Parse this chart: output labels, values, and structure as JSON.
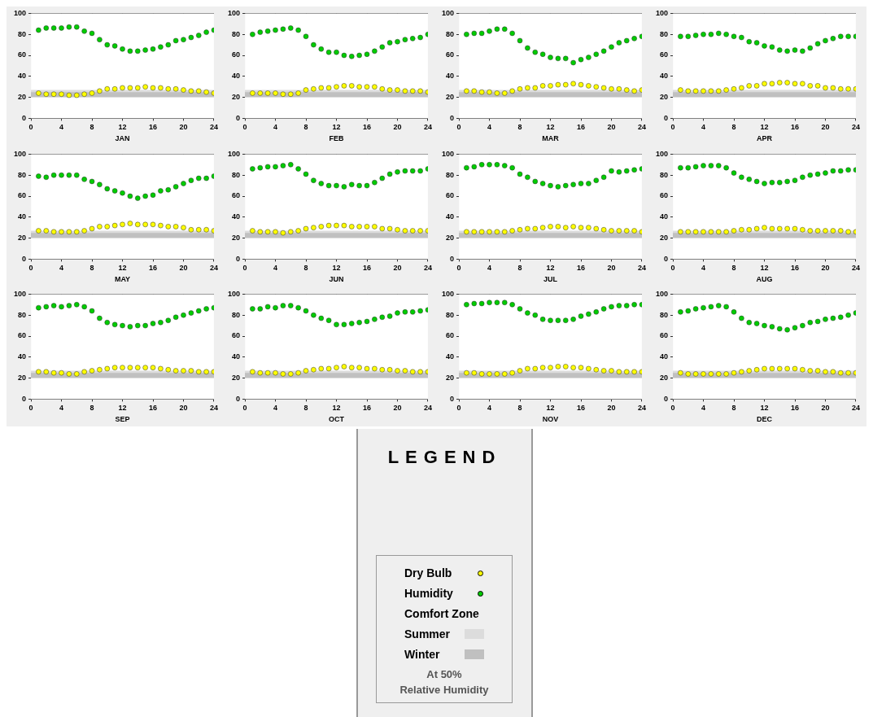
{
  "chart_data": [
    {
      "type": "scatter",
      "xlabel": "JAN",
      "x": [
        1,
        2,
        3,
        4,
        5,
        6,
        7,
        8,
        9,
        10,
        11,
        12,
        13,
        14,
        15,
        16,
        17,
        18,
        19,
        20,
        21,
        22,
        23,
        24
      ],
      "xlim": [
        0,
        24
      ],
      "xticks": [
        0,
        4,
        8,
        12,
        16,
        20,
        24
      ],
      "ylim": [
        0,
        100
      ],
      "yticks": [
        0,
        20,
        40,
        60,
        80,
        100
      ],
      "grid": true,
      "marker": "circle",
      "bands": [
        {
          "axis": "y",
          "from": 23,
          "to": 27,
          "color": "#dcdcdc"
        },
        {
          "axis": "y",
          "from": 20,
          "to": 25,
          "color": "#c0c0c0"
        }
      ],
      "series": [
        {
          "color": "#ffff00",
          "values": [
            24,
            23,
            23,
            23,
            22,
            22,
            23,
            24,
            26,
            28,
            28,
            29,
            29,
            29,
            30,
            29,
            29,
            28,
            28,
            27,
            26,
            26,
            25,
            24
          ]
        },
        {
          "color": "#00cc00",
          "values": [
            84,
            86,
            86,
            86,
            87,
            87,
            83,
            81,
            75,
            70,
            69,
            66,
            64,
            64,
            65,
            66,
            68,
            70,
            74,
            75,
            77,
            79,
            82,
            84
          ]
        }
      ]
    },
    {
      "type": "scatter",
      "xlabel": "FEB",
      "x": [
        1,
        2,
        3,
        4,
        5,
        6,
        7,
        8,
        9,
        10,
        11,
        12,
        13,
        14,
        15,
        16,
        17,
        18,
        19,
        20,
        21,
        22,
        23,
        24
      ],
      "xlim": [
        0,
        24
      ],
      "xticks": [
        0,
        4,
        8,
        12,
        16,
        20,
        24
      ],
      "ylim": [
        0,
        100
      ],
      "yticks": [
        0,
        20,
        40,
        60,
        80,
        100
      ],
      "grid": true,
      "marker": "circle",
      "bands": [
        {
          "axis": "y",
          "from": 23,
          "to": 27,
          "color": "#dcdcdc"
        },
        {
          "axis": "y",
          "from": 20,
          "to": 25,
          "color": "#c0c0c0"
        }
      ],
      "series": [
        {
          "color": "#ffff00",
          "values": [
            24,
            24,
            24,
            24,
            23,
            23,
            24,
            27,
            28,
            29,
            29,
            30,
            31,
            31,
            30,
            30,
            30,
            28,
            27,
            27,
            26,
            26,
            26,
            25
          ]
        },
        {
          "color": "#00cc00",
          "values": [
            80,
            82,
            83,
            84,
            85,
            86,
            84,
            78,
            70,
            66,
            63,
            63,
            60,
            59,
            60,
            61,
            64,
            68,
            72,
            73,
            75,
            76,
            77,
            80
          ]
        }
      ]
    },
    {
      "type": "scatter",
      "xlabel": "MAR",
      "x": [
        1,
        2,
        3,
        4,
        5,
        6,
        7,
        8,
        9,
        10,
        11,
        12,
        13,
        14,
        15,
        16,
        17,
        18,
        19,
        20,
        21,
        22,
        23,
        24
      ],
      "xlim": [
        0,
        24
      ],
      "xticks": [
        0,
        4,
        8,
        12,
        16,
        20,
        24
      ],
      "ylim": [
        0,
        100
      ],
      "yticks": [
        0,
        20,
        40,
        60,
        80,
        100
      ],
      "grid": true,
      "marker": "circle",
      "bands": [
        {
          "axis": "y",
          "from": 23,
          "to": 27,
          "color": "#dcdcdc"
        },
        {
          "axis": "y",
          "from": 20,
          "to": 25,
          "color": "#c0c0c0"
        }
      ],
      "series": [
        {
          "color": "#ffff00",
          "values": [
            26,
            26,
            25,
            25,
            24,
            24,
            26,
            28,
            29,
            29,
            31,
            31,
            32,
            32,
            33,
            32,
            31,
            30,
            29,
            28,
            28,
            27,
            26,
            27
          ]
        },
        {
          "color": "#00cc00",
          "values": [
            80,
            81,
            81,
            83,
            85,
            85,
            81,
            74,
            67,
            63,
            61,
            58,
            57,
            57,
            53,
            56,
            58,
            61,
            64,
            68,
            72,
            74,
            76,
            78
          ]
        }
      ]
    },
    {
      "type": "scatter",
      "xlabel": "APR",
      "x": [
        1,
        2,
        3,
        4,
        5,
        6,
        7,
        8,
        9,
        10,
        11,
        12,
        13,
        14,
        15,
        16,
        17,
        18,
        19,
        20,
        21,
        22,
        23,
        24
      ],
      "xlim": [
        0,
        24
      ],
      "xticks": [
        0,
        4,
        8,
        12,
        16,
        20,
        24
      ],
      "ylim": [
        0,
        100
      ],
      "yticks": [
        0,
        20,
        40,
        60,
        80,
        100
      ],
      "grid": true,
      "marker": "circle",
      "bands": [
        {
          "axis": "y",
          "from": 23,
          "to": 27,
          "color": "#dcdcdc"
        },
        {
          "axis": "y",
          "from": 20,
          "to": 25,
          "color": "#c0c0c0"
        }
      ],
      "series": [
        {
          "color": "#ffff00",
          "values": [
            27,
            26,
            26,
            26,
            26,
            26,
            27,
            28,
            29,
            31,
            31,
            33,
            33,
            34,
            34,
            33,
            33,
            31,
            31,
            29,
            29,
            28,
            28,
            28
          ]
        },
        {
          "color": "#00cc00",
          "values": [
            78,
            78,
            79,
            80,
            80,
            81,
            80,
            78,
            77,
            73,
            72,
            69,
            68,
            65,
            64,
            65,
            64,
            67,
            71,
            74,
            76,
            78,
            78,
            78
          ]
        }
      ]
    },
    {
      "type": "scatter",
      "xlabel": "MAY",
      "x": [
        1,
        2,
        3,
        4,
        5,
        6,
        7,
        8,
        9,
        10,
        11,
        12,
        13,
        14,
        15,
        16,
        17,
        18,
        19,
        20,
        21,
        22,
        23,
        24
      ],
      "xlim": [
        0,
        24
      ],
      "xticks": [
        0,
        4,
        8,
        12,
        16,
        20,
        24
      ],
      "ylim": [
        0,
        100
      ],
      "yticks": [
        0,
        20,
        40,
        60,
        80,
        100
      ],
      "grid": true,
      "marker": "circle",
      "bands": [
        {
          "axis": "y",
          "from": 23,
          "to": 27,
          "color": "#dcdcdc"
        },
        {
          "axis": "y",
          "from": 20,
          "to": 25,
          "color": "#c0c0c0"
        }
      ],
      "series": [
        {
          "color": "#ffff00",
          "values": [
            27,
            27,
            26,
            26,
            26,
            26,
            27,
            29,
            31,
            31,
            32,
            33,
            34,
            33,
            33,
            33,
            32,
            31,
            31,
            30,
            28,
            28,
            28,
            27
          ]
        },
        {
          "color": "#00cc00",
          "values": [
            79,
            78,
            80,
            80,
            80,
            80,
            76,
            74,
            71,
            67,
            65,
            63,
            60,
            58,
            60,
            61,
            65,
            66,
            69,
            72,
            75,
            77,
            77,
            79
          ]
        }
      ]
    },
    {
      "type": "scatter",
      "xlabel": "JUN",
      "x": [
        1,
        2,
        3,
        4,
        5,
        6,
        7,
        8,
        9,
        10,
        11,
        12,
        13,
        14,
        15,
        16,
        17,
        18,
        19,
        20,
        21,
        22,
        23,
        24
      ],
      "xlim": [
        0,
        24
      ],
      "xticks": [
        0,
        4,
        8,
        12,
        16,
        20,
        24
      ],
      "ylim": [
        0,
        100
      ],
      "yticks": [
        0,
        20,
        40,
        60,
        80,
        100
      ],
      "grid": true,
      "marker": "circle",
      "bands": [
        {
          "axis": "y",
          "from": 23,
          "to": 27,
          "color": "#dcdcdc"
        },
        {
          "axis": "y",
          "from": 20,
          "to": 25,
          "color": "#c0c0c0"
        }
      ],
      "series": [
        {
          "color": "#ffff00",
          "values": [
            27,
            26,
            26,
            26,
            25,
            26,
            27,
            29,
            30,
            31,
            32,
            32,
            32,
            31,
            31,
            31,
            31,
            29,
            29,
            28,
            27,
            27,
            27,
            27
          ]
        },
        {
          "color": "#00cc00",
          "values": [
            86,
            87,
            88,
            88,
            89,
            90,
            86,
            81,
            75,
            72,
            70,
            70,
            69,
            71,
            70,
            70,
            73,
            77,
            81,
            83,
            84,
            84,
            84,
            86
          ]
        }
      ]
    },
    {
      "type": "scatter",
      "xlabel": "JUL",
      "x": [
        1,
        2,
        3,
        4,
        5,
        6,
        7,
        8,
        9,
        10,
        11,
        12,
        13,
        14,
        15,
        16,
        17,
        18,
        19,
        20,
        21,
        22,
        23,
        24
      ],
      "xlim": [
        0,
        24
      ],
      "xticks": [
        0,
        4,
        8,
        12,
        16,
        20,
        24
      ],
      "ylim": [
        0,
        100
      ],
      "yticks": [
        0,
        20,
        40,
        60,
        80,
        100
      ],
      "grid": true,
      "marker": "circle",
      "bands": [
        {
          "axis": "y",
          "from": 23,
          "to": 27,
          "color": "#dcdcdc"
        },
        {
          "axis": "y",
          "from": 20,
          "to": 25,
          "color": "#c0c0c0"
        }
      ],
      "series": [
        {
          "color": "#ffff00",
          "values": [
            26,
            26,
            26,
            26,
            26,
            26,
            27,
            28,
            29,
            29,
            30,
            31,
            31,
            30,
            31,
            30,
            30,
            29,
            28,
            27,
            27,
            27,
            27,
            26
          ]
        },
        {
          "color": "#00cc00",
          "values": [
            87,
            88,
            90,
            90,
            90,
            89,
            87,
            81,
            78,
            74,
            72,
            70,
            69,
            70,
            71,
            72,
            72,
            75,
            78,
            84,
            83,
            84,
            85,
            86
          ]
        }
      ]
    },
    {
      "type": "scatter",
      "xlabel": "AUG",
      "x": [
        1,
        2,
        3,
        4,
        5,
        6,
        7,
        8,
        9,
        10,
        11,
        12,
        13,
        14,
        15,
        16,
        17,
        18,
        19,
        20,
        21,
        22,
        23,
        24
      ],
      "xlim": [
        0,
        24
      ],
      "xticks": [
        0,
        4,
        8,
        12,
        16,
        20,
        24
      ],
      "ylim": [
        0,
        100
      ],
      "yticks": [
        0,
        20,
        40,
        60,
        80,
        100
      ],
      "grid": true,
      "marker": "circle",
      "bands": [
        {
          "axis": "y",
          "from": 23,
          "to": 27,
          "color": "#dcdcdc"
        },
        {
          "axis": "y",
          "from": 20,
          "to": 25,
          "color": "#c0c0c0"
        }
      ],
      "series": [
        {
          "color": "#ffff00",
          "values": [
            26,
            26,
            26,
            26,
            26,
            26,
            26,
            27,
            28,
            28,
            29,
            30,
            29,
            29,
            29,
            29,
            28,
            27,
            27,
            27,
            27,
            27,
            26,
            26
          ]
        },
        {
          "color": "#00cc00",
          "values": [
            87,
            87,
            88,
            89,
            89,
            89,
            87,
            82,
            78,
            76,
            74,
            72,
            73,
            73,
            74,
            75,
            78,
            80,
            81,
            82,
            84,
            84,
            85,
            85
          ]
        }
      ]
    },
    {
      "type": "scatter",
      "xlabel": "SEP",
      "x": [
        1,
        2,
        3,
        4,
        5,
        6,
        7,
        8,
        9,
        10,
        11,
        12,
        13,
        14,
        15,
        16,
        17,
        18,
        19,
        20,
        21,
        22,
        23,
        24
      ],
      "xlim": [
        0,
        24
      ],
      "xticks": [
        0,
        4,
        8,
        12,
        16,
        20,
        24
      ],
      "ylim": [
        0,
        100
      ],
      "yticks": [
        0,
        20,
        40,
        60,
        80,
        100
      ],
      "grid": true,
      "marker": "circle",
      "bands": [
        {
          "axis": "y",
          "from": 23,
          "to": 27,
          "color": "#dcdcdc"
        },
        {
          "axis": "y",
          "from": 20,
          "to": 25,
          "color": "#c0c0c0"
        }
      ],
      "series": [
        {
          "color": "#ffff00",
          "values": [
            26,
            26,
            25,
            25,
            24,
            24,
            26,
            27,
            28,
            29,
            30,
            30,
            30,
            30,
            30,
            30,
            29,
            28,
            27,
            27,
            27,
            26,
            26,
            26
          ]
        },
        {
          "color": "#00cc00",
          "values": [
            87,
            88,
            89,
            88,
            89,
            90,
            88,
            84,
            77,
            73,
            71,
            70,
            69,
            70,
            70,
            72,
            73,
            75,
            78,
            80,
            82,
            84,
            86,
            87
          ]
        }
      ]
    },
    {
      "type": "scatter",
      "xlabel": "OCT",
      "x": [
        1,
        2,
        3,
        4,
        5,
        6,
        7,
        8,
        9,
        10,
        11,
        12,
        13,
        14,
        15,
        16,
        17,
        18,
        19,
        20,
        21,
        22,
        23,
        24
      ],
      "xlim": [
        0,
        24
      ],
      "xticks": [
        0,
        4,
        8,
        12,
        16,
        20,
        24
      ],
      "ylim": [
        0,
        100
      ],
      "yticks": [
        0,
        20,
        40,
        60,
        80,
        100
      ],
      "grid": true,
      "marker": "circle",
      "bands": [
        {
          "axis": "y",
          "from": 23,
          "to": 27,
          "color": "#dcdcdc"
        },
        {
          "axis": "y",
          "from": 20,
          "to": 25,
          "color": "#c0c0c0"
        }
      ],
      "series": [
        {
          "color": "#ffff00",
          "values": [
            26,
            25,
            25,
            25,
            24,
            24,
            25,
            27,
            28,
            29,
            29,
            30,
            31,
            30,
            30,
            29,
            29,
            28,
            28,
            27,
            27,
            26,
            26,
            26
          ]
        },
        {
          "color": "#00cc00",
          "values": [
            86,
            86,
            88,
            87,
            89,
            89,
            87,
            84,
            80,
            77,
            75,
            71,
            71,
            72,
            73,
            74,
            76,
            78,
            79,
            82,
            83,
            83,
            84,
            85
          ]
        }
      ]
    },
    {
      "type": "scatter",
      "xlabel": "NOV",
      "x": [
        1,
        2,
        3,
        4,
        5,
        6,
        7,
        8,
        9,
        10,
        11,
        12,
        13,
        14,
        15,
        16,
        17,
        18,
        19,
        20,
        21,
        22,
        23,
        24
      ],
      "xlim": [
        0,
        24
      ],
      "xticks": [
        0,
        4,
        8,
        12,
        16,
        20,
        24
      ],
      "ylim": [
        0,
        100
      ],
      "yticks": [
        0,
        20,
        40,
        60,
        80,
        100
      ],
      "grid": true,
      "marker": "circle",
      "bands": [
        {
          "axis": "y",
          "from": 23,
          "to": 27,
          "color": "#dcdcdc"
        },
        {
          "axis": "y",
          "from": 20,
          "to": 25,
          "color": "#c0c0c0"
        }
      ],
      "series": [
        {
          "color": "#ffff00",
          "values": [
            25,
            25,
            24,
            24,
            24,
            24,
            25,
            27,
            29,
            29,
            30,
            30,
            31,
            31,
            30,
            30,
            29,
            28,
            27,
            27,
            26,
            26,
            26,
            26
          ]
        },
        {
          "color": "#00cc00",
          "values": [
            90,
            91,
            91,
            92,
            92,
            92,
            90,
            86,
            82,
            80,
            76,
            75,
            75,
            75,
            76,
            79,
            81,
            83,
            86,
            88,
            89,
            89,
            90,
            90
          ]
        }
      ]
    },
    {
      "type": "scatter",
      "xlabel": "DEC",
      "x": [
        1,
        2,
        3,
        4,
        5,
        6,
        7,
        8,
        9,
        10,
        11,
        12,
        13,
        14,
        15,
        16,
        17,
        18,
        19,
        20,
        21,
        22,
        23,
        24
      ],
      "xlim": [
        0,
        24
      ],
      "xticks": [
        0,
        4,
        8,
        12,
        16,
        20,
        24
      ],
      "ylim": [
        0,
        100
      ],
      "yticks": [
        0,
        20,
        40,
        60,
        80,
        100
      ],
      "grid": true,
      "marker": "circle",
      "bands": [
        {
          "axis": "y",
          "from": 23,
          "to": 27,
          "color": "#dcdcdc"
        },
        {
          "axis": "y",
          "from": 20,
          "to": 25,
          "color": "#c0c0c0"
        }
      ],
      "series": [
        {
          "color": "#ffff00",
          "values": [
            25,
            24,
            24,
            24,
            24,
            24,
            24,
            25,
            26,
            27,
            28,
            29,
            29,
            29,
            29,
            29,
            28,
            27,
            27,
            26,
            26,
            25,
            25,
            25
          ]
        },
        {
          "color": "#00cc00",
          "values": [
            83,
            84,
            86,
            87,
            88,
            89,
            88,
            83,
            77,
            73,
            72,
            70,
            69,
            67,
            66,
            68,
            70,
            73,
            74,
            76,
            77,
            78,
            80,
            82
          ]
        }
      ]
    },
    {
      "type": "other",
      "title": "LEGEND",
      "annotations": [
        "Dry Bulb",
        "Humidity",
        "Comfort Zone",
        "Summer",
        "Winter",
        "At 50%",
        "Relative Humidity"
      ]
    }
  ]
}
